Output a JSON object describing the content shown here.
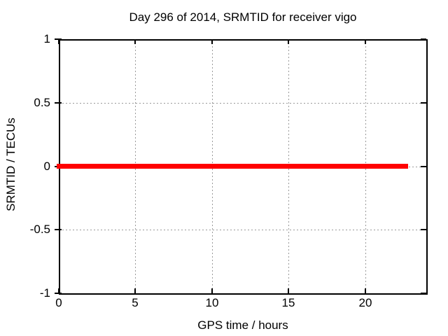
{
  "chart_data": {
    "type": "line",
    "title": "Day 296 of 2014, SRMTID for receiver vigo",
    "xlabel": "GPS time / hours",
    "ylabel": "SRMTID / TECUs",
    "xlim": [
      0,
      24
    ],
    "ylim": [
      -1,
      1
    ],
    "x_ticks": [
      0,
      5,
      10,
      15,
      20
    ],
    "x_tick_labels": [
      "0",
      "5",
      "10",
      "15",
      "20"
    ],
    "y_ticks": [
      1,
      0.5,
      0,
      -0.5,
      -1
    ],
    "y_tick_labels": [
      "1",
      "0.5",
      "0",
      "-0.5",
      "-1"
    ],
    "grid": "dotted, at interior ticks",
    "legend": "none",
    "series": [
      {
        "name": "SRMTID",
        "color": "#ff0000",
        "style": "thick solid horizontal line",
        "x": [
          0,
          22.8
        ],
        "y": [
          0,
          0
        ],
        "note": "constant value 0 TECUs from hour 0 to ~22.8; no data afterwards"
      }
    ]
  },
  "colors": {
    "background": "#ffffff",
    "axis": "#000000",
    "grid": "#9a9a9a",
    "text": "#000000",
    "series": "#ff0000"
  }
}
